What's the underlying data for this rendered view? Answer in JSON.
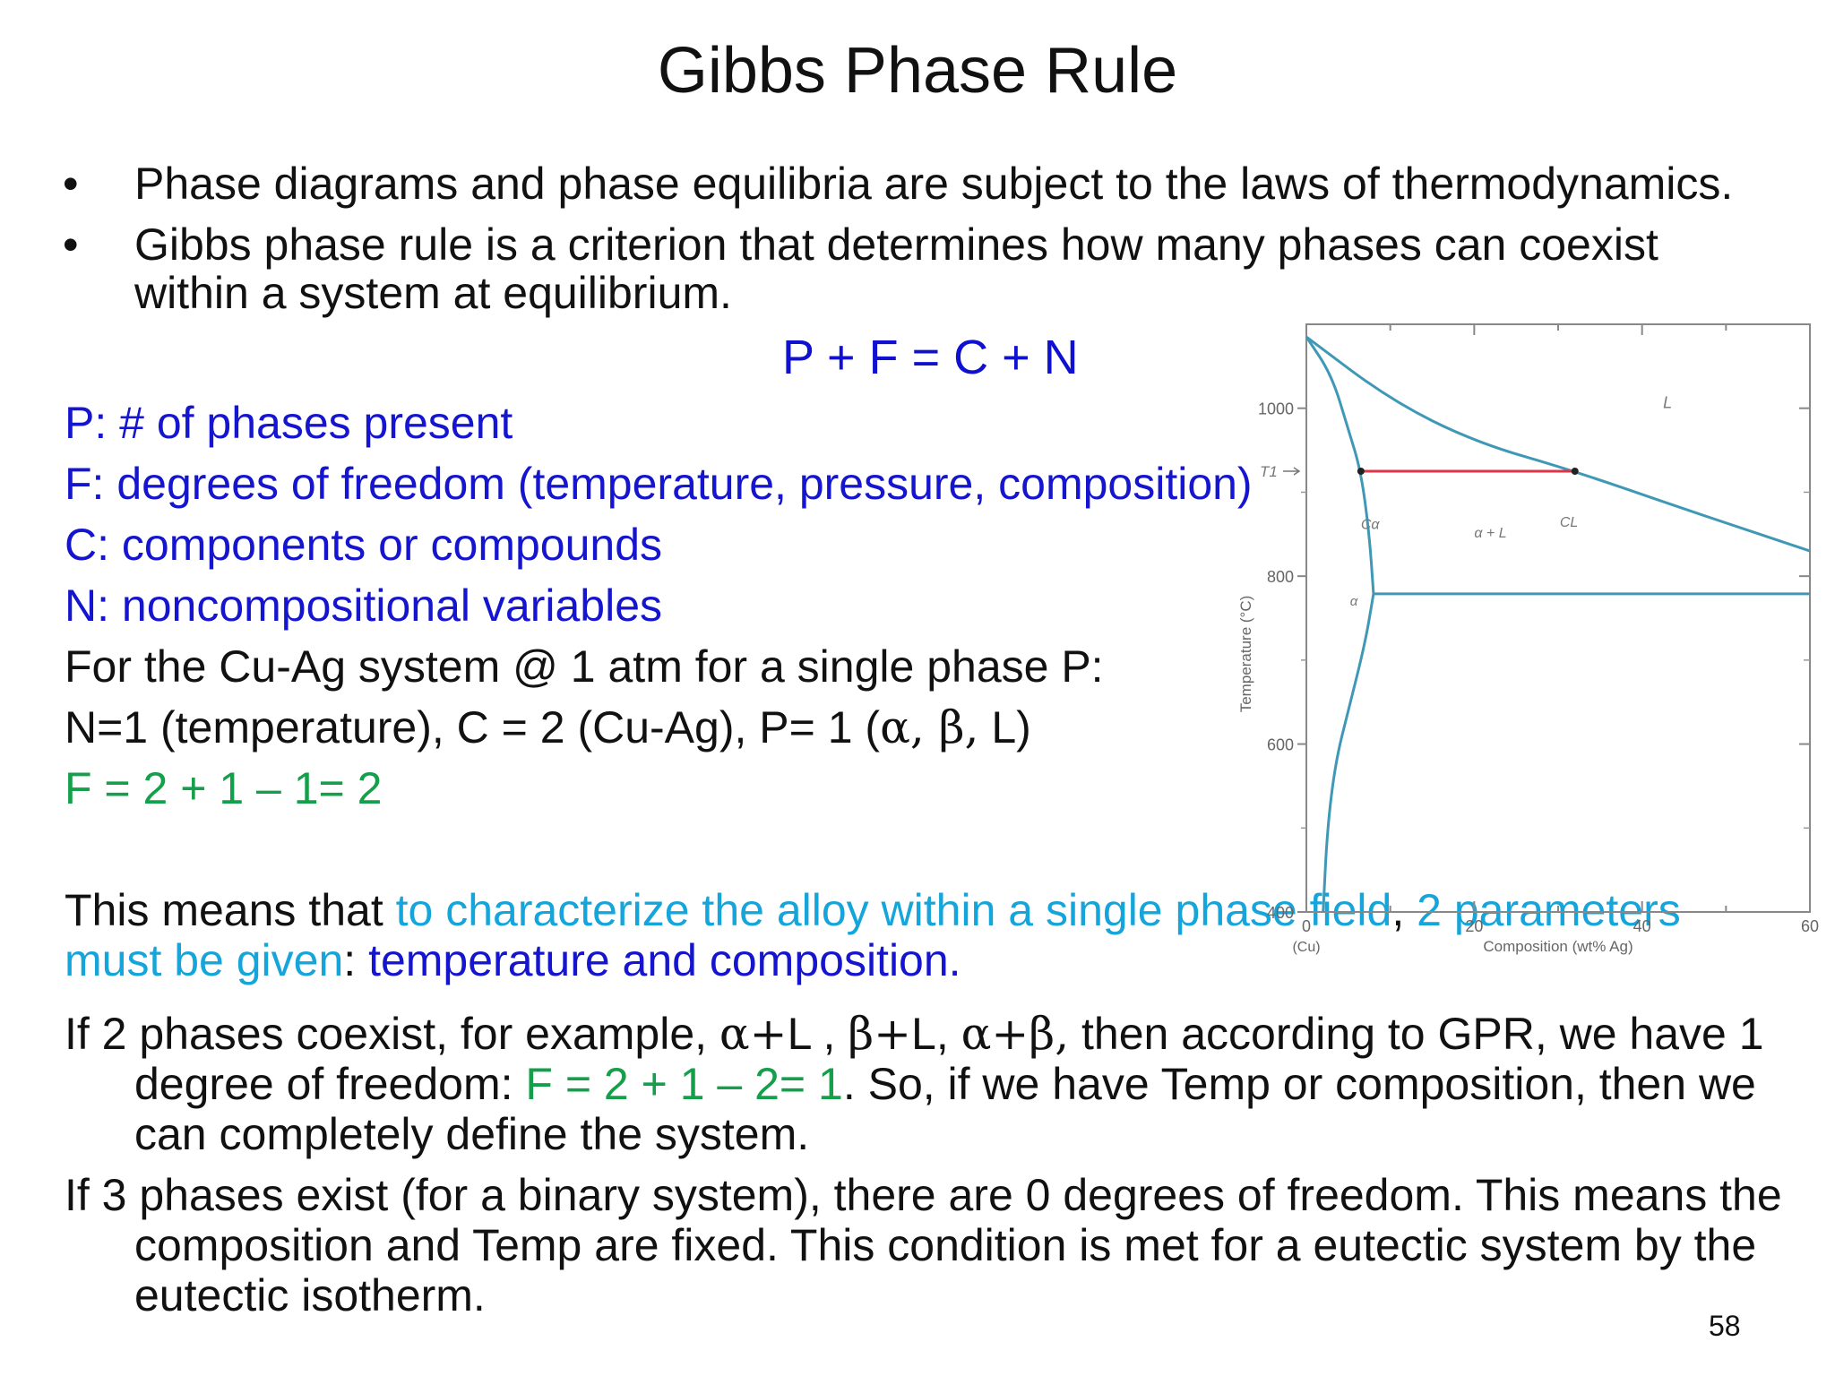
{
  "slide": {
    "title": "Gibbs Phase Rule",
    "bullets": [
      "Phase diagrams and phase equilibria are subject to the laws of thermodynamics.",
      "Gibbs phase rule is a criterion that determines how many phases can coexist within a system at equilibrium."
    ],
    "bullet_glyph": "•",
    "equation": "P + F = C + N",
    "definitions": [
      "P: # of phases present",
      "F: degrees of freedom (temperature, pressure, composition)",
      "C: components or compounds",
      "N: noncompositional variables"
    ],
    "cu_ag_line": "For the Cu-Ag system @ 1 atm for a single phase P:",
    "n_line": {
      "pre": "N=1 (temperature), C = 2 (Cu-Ag), P= 1 (",
      "greek": "α, β,",
      "post": " L)"
    },
    "f_line": "F = 2 + 1 – 1= 2",
    "means": {
      "p1": "This means that ",
      "p2": "to characterize the alloy within a single phase field",
      "p3": ", ",
      "p4": "2 parameters must be given",
      "p5": ": ",
      "p6": "temperature and composition."
    },
    "two_phases": {
      "p1": "If 2 phases coexist, for example, ",
      "g1": "α+",
      "p2": "L , ",
      "g2": "β+",
      "p3": "L, ",
      "g3": "α+β,",
      "p4": " then according to GPR, we have 1 degree of freedom: ",
      "green": "F = 2 + 1 – 2= 1",
      "p5": ". So, if we have Temp or composition, then we can completely define the system."
    },
    "three_phases": "If 3 phases exist (for a binary system), there are 0 degrees of freedom. This means the composition and Temp are fixed. This condition is met for a eutectic system by the eutectic isotherm.",
    "page_number": "58"
  },
  "chart_data": {
    "type": "diagram",
    "title": "",
    "xlabel": "Composition (wt% Ag)",
    "ylabel": "Temperature (°C)",
    "x_origin_label": "(Cu)",
    "xlim": [
      0,
      60
    ],
    "ylim": [
      400,
      1100
    ],
    "x_ticks": [
      0,
      20,
      40,
      60
    ],
    "y_ticks": [
      400,
      600,
      800,
      1000
    ],
    "phase_labels": {
      "liquid": "L",
      "alpha": "α",
      "two_phase": "α + L",
      "c_alpha": "Cα",
      "c_liquid": "CL",
      "t1": "T1"
    },
    "t1_temperature": 925,
    "t1_c_alpha": 6.5,
    "t1_c_liquid": 32,
    "eutectic_temperature": 779,
    "alpha_max_solubility": 8,
    "curves": {
      "liquidus": [
        [
          0,
          1085
        ],
        [
          10,
          1010
        ],
        [
          20,
          960
        ],
        [
          32,
          925
        ],
        [
          45,
          880
        ],
        [
          60,
          830
        ]
      ],
      "solidus": [
        [
          0,
          1085
        ],
        [
          3,
          1040
        ],
        [
          5,
          975
        ],
        [
          6.5,
          925
        ],
        [
          7.5,
          850
        ],
        [
          8,
          779
        ]
      ],
      "solvus": [
        [
          8,
          779
        ],
        [
          7,
          720
        ],
        [
          5,
          640
        ],
        [
          3.5,
          580
        ],
        [
          2.5,
          500
        ],
        [
          2,
          400
        ]
      ]
    },
    "colors": {
      "phase_lines": "#3f98b6",
      "tie_line": "#e03448",
      "frame": "#888888"
    }
  }
}
